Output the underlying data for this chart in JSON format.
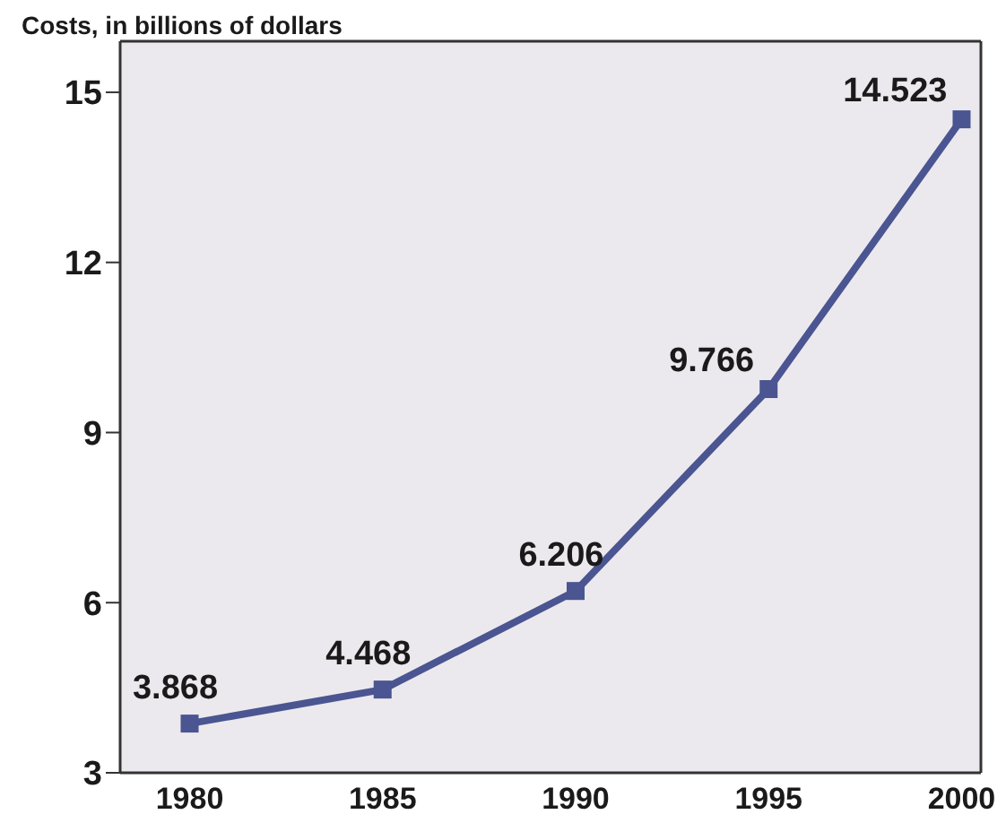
{
  "chart_data": {
    "type": "line",
    "title": "Costs, in billions of dollars",
    "x": [
      1980,
      1985,
      1990,
      1995,
      2000
    ],
    "series": [
      {
        "color": "#4a5591",
        "values": [
          3.868,
          4.468,
          6.206,
          9.766,
          14.523
        ]
      }
    ],
    "xlim": [
      1978.2,
      2000.5
    ],
    "xticks": [
      1980,
      1985,
      1990,
      1995,
      2000
    ],
    "ylim": [
      3,
      15.9
    ],
    "yticks": [
      3,
      6,
      9,
      12,
      15
    ],
    "grid": false,
    "legend": false,
    "marker": "square",
    "line_style": "solid",
    "data_labels": true
  }
}
